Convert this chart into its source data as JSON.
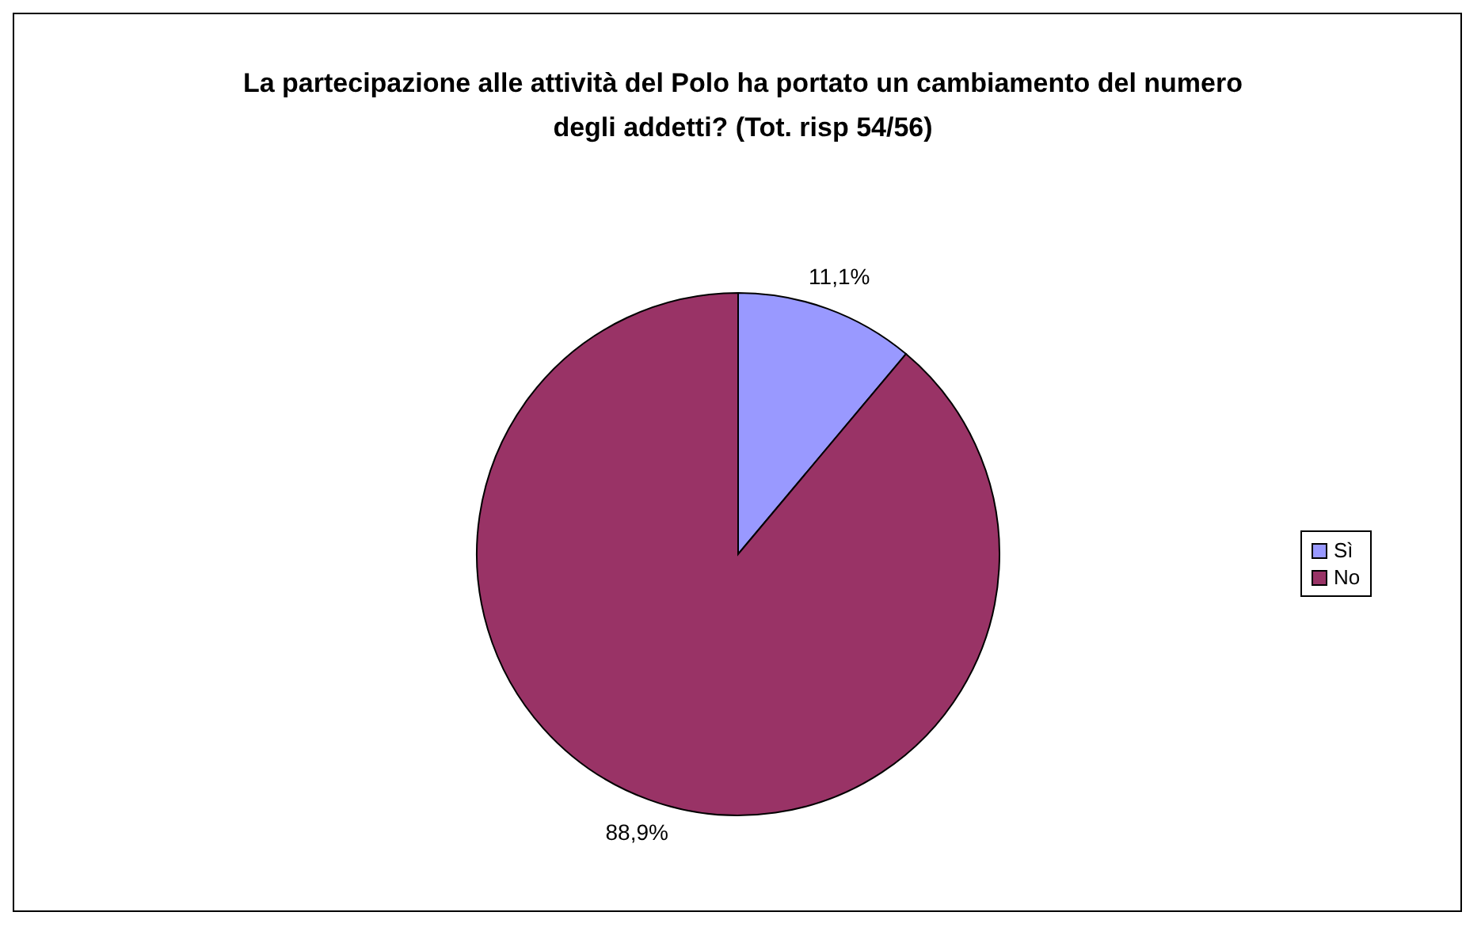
{
  "chart_data": {
    "type": "pie",
    "title": "La partecipazione alle attività del Polo ha portato un cambiamento del numero degli addetti? (Tot. risp 54/56)",
    "categories": [
      "Sì",
      "No"
    ],
    "values": [
      11.1,
      88.9
    ],
    "colors": [
      "#9999ff",
      "#993366"
    ],
    "value_labels": [
      "11,1%",
      "88,9%"
    ],
    "legend": "right"
  }
}
